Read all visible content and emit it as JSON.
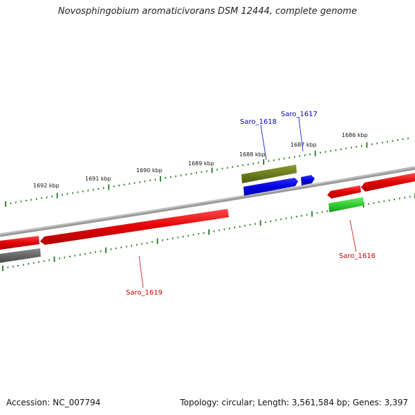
{
  "title": "Novosphingobium aromaticivorans DSM 12444, complete genome",
  "footer": {
    "accession": "Accession: NC_007794",
    "summary": "Topology: circular; Length: 3,561,584 bp; Genes: 3,397"
  },
  "scale_labels": [
    "1692 kbp",
    "1691 kbp",
    "1690 kbp",
    "1689 kbp",
    "1688 kbp",
    "1687 kbp",
    "1686 kbp"
  ],
  "gene_labels": {
    "saro_1618": "Saro_1618",
    "saro_1617": "Saro_1617",
    "saro_1616": "Saro_1616",
    "saro_1619": "Saro_1619"
  },
  "colors": {
    "backbone": "#808080",
    "scale_ticks": "#1a7a1a",
    "cds_forward": "#e80000",
    "cds_reverse_grey": "#666666",
    "olive_feature": "#6b7d1e",
    "blue_feature": "#0000e0",
    "green_feature": "#33cc33",
    "label_red": "#cc0000",
    "label_blue": "#0000cc"
  }
}
